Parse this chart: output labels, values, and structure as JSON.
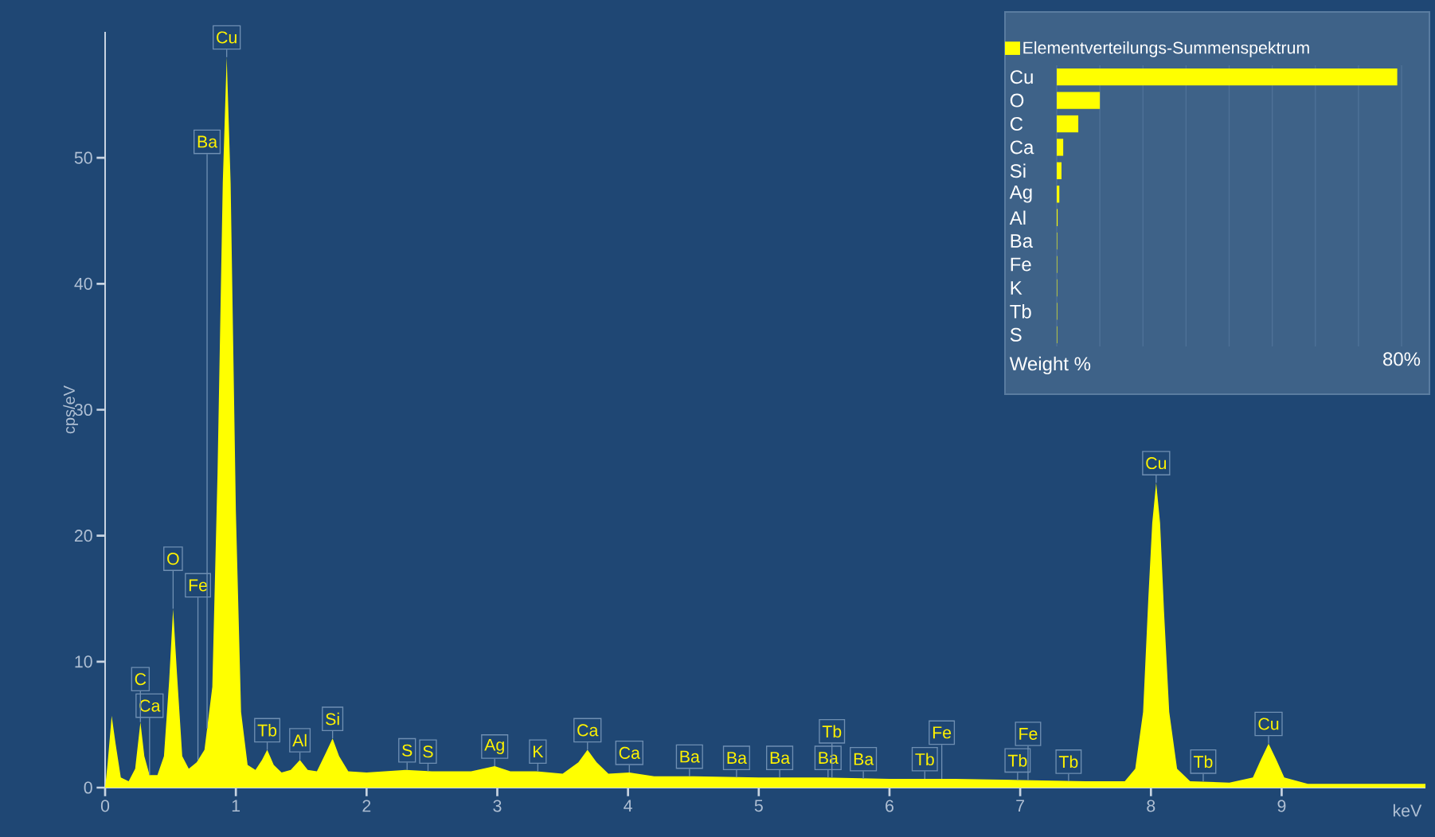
{
  "chart_data": [
    {
      "type": "area",
      "xlabel": "keV",
      "ylabel": "cps/eV",
      "legend": false,
      "grid": false,
      "xlim": [
        0,
        10.1
      ],
      "ylim": [
        0,
        60
      ],
      "xticks": [
        0,
        1,
        2,
        3,
        4,
        5,
        6,
        7,
        8,
        9
      ],
      "yticks": [
        0,
        10,
        20,
        30,
        40,
        50
      ],
      "series": [
        {
          "color": "#ffff00",
          "x": [
            0.0,
            0.02,
            0.05,
            0.08,
            0.12,
            0.18,
            0.23,
            0.27,
            0.3,
            0.34,
            0.4,
            0.45,
            0.49,
            0.52,
            0.55,
            0.59,
            0.64,
            0.7,
            0.76,
            0.82,
            0.86,
            0.9,
            0.93,
            0.96,
            1.0,
            1.04,
            1.09,
            1.15,
            1.2,
            1.24,
            1.29,
            1.35,
            1.42,
            1.49,
            1.55,
            1.62,
            1.69,
            1.74,
            1.79,
            1.86,
            2.0,
            2.3,
            2.5,
            2.8,
            2.98,
            3.1,
            3.3,
            3.5,
            3.62,
            3.69,
            3.76,
            3.85,
            4.01,
            4.2,
            4.5,
            5.0,
            5.5,
            6.0,
            6.5,
            7.0,
            7.5,
            7.8,
            7.88,
            7.94,
            7.98,
            8.01,
            8.04,
            8.07,
            8.1,
            8.14,
            8.2,
            8.3,
            8.6,
            8.78,
            8.84,
            8.9,
            8.96,
            9.02,
            9.2,
            9.6,
            10.1
          ],
          "values": [
            0,
            2.0,
            5.7,
            3.5,
            0.8,
            0.5,
            1.5,
            5.2,
            2.5,
            1.0,
            1.0,
            2.5,
            8.5,
            14.2,
            9.0,
            2.5,
            1.5,
            2.0,
            3.0,
            8.0,
            25,
            48,
            58,
            48,
            22,
            6,
            1.8,
            1.4,
            2.2,
            3.0,
            1.8,
            1.2,
            1.4,
            2.2,
            1.4,
            1.3,
            2.8,
            3.9,
            2.5,
            1.3,
            1.2,
            1.4,
            1.3,
            1.3,
            1.7,
            1.3,
            1.3,
            1.1,
            2.0,
            3.0,
            2.0,
            1.1,
            1.2,
            0.9,
            0.9,
            0.8,
            0.8,
            0.7,
            0.7,
            0.6,
            0.5,
            0.5,
            1.5,
            6,
            15,
            21,
            24.2,
            21,
            14,
            6,
            1.5,
            0.5,
            0.4,
            0.8,
            2.2,
            3.5,
            2.2,
            0.8,
            0.3,
            0.3,
            0.3
          ]
        }
      ],
      "annotations": [
        {
          "text": "Cu",
          "x": 0.93,
          "y": 58
        },
        {
          "text": "C",
          "x": 0.27,
          "y": 5.2
        },
        {
          "text": "Ca",
          "x": 0.34,
          "y": 1.0
        },
        {
          "text": "O",
          "x": 0.52,
          "y": 14.2
        },
        {
          "text": "Ba",
          "x": 0.78,
          "y": 4.7
        },
        {
          "text": "Fe",
          "x": 0.71,
          "y": 2.2
        },
        {
          "text": "Tb",
          "x": 1.24,
          "y": 3.0
        },
        {
          "text": "Al",
          "x": 1.49,
          "y": 2.2
        },
        {
          "text": "Si",
          "x": 1.74,
          "y": 3.9
        },
        {
          "text": "S",
          "x": 2.31,
          "y": 1.4
        },
        {
          "text": "S",
          "x": 2.47,
          "y": 1.3
        },
        {
          "text": "Ag",
          "x": 2.98,
          "y": 1.7
        },
        {
          "text": "K",
          "x": 3.31,
          "y": 1.3
        },
        {
          "text": "Ca",
          "x": 3.69,
          "y": 3.0
        },
        {
          "text": "Ca",
          "x": 4.01,
          "y": 1.2
        },
        {
          "text": "Ba",
          "x": 4.47,
          "y": 0.9
        },
        {
          "text": "Ba",
          "x": 4.83,
          "y": 0.8
        },
        {
          "text": "Ba",
          "x": 5.16,
          "y": 0.8
        },
        {
          "text": "Ba",
          "x": 5.53,
          "y": 0.8
        },
        {
          "text": "Tb",
          "x": 5.56,
          "y": 0.8
        },
        {
          "text": "Ba",
          "x": 5.8,
          "y": 0.7
        },
        {
          "text": "Tb",
          "x": 6.27,
          "y": 0.7
        },
        {
          "text": "Fe",
          "x": 6.4,
          "y": 0.7
        },
        {
          "text": "Tb",
          "x": 6.98,
          "y": 0.6
        },
        {
          "text": "Fe",
          "x": 7.06,
          "y": 0.6
        },
        {
          "text": "Tb",
          "x": 7.37,
          "y": 0.5
        },
        {
          "text": "Cu",
          "x": 8.04,
          "y": 24.2
        },
        {
          "text": "Tb",
          "x": 8.4,
          "y": 0.5
        },
        {
          "text": "Cu",
          "x": 8.9,
          "y": 3.5
        }
      ]
    },
    {
      "type": "bar",
      "orientation": "horizontal",
      "legend": "top",
      "grid": "x",
      "xlabel": "Weight %",
      "categories": [
        "Cu",
        "O",
        "C",
        "Ca",
        "Si",
        "Ag",
        "Al",
        "Ba",
        "Fe",
        "K",
        "Tb",
        "S"
      ],
      "xlim": [
        0,
        80
      ],
      "xticks": [
        {
          "value": 0,
          "label": null
        },
        {
          "value": 10,
          "label": null
        },
        {
          "value": 20,
          "label": null
        },
        {
          "value": 30,
          "label": null
        },
        {
          "value": 40,
          "label": null
        },
        {
          "value": 50,
          "label": null
        },
        {
          "value": 60,
          "label": null
        },
        {
          "value": 70,
          "label": null
        },
        {
          "value": 80,
          "label": "80%"
        }
      ],
      "series": [
        {
          "name": "Elementverteilungs-Summenspektrum",
          "color": "#ffff00",
          "values": [
            79,
            10,
            5,
            1.5,
            1.1,
            0.6,
            0.2,
            0.1,
            0.1,
            0.1,
            0.1,
            0.1
          ]
        }
      ]
    }
  ]
}
